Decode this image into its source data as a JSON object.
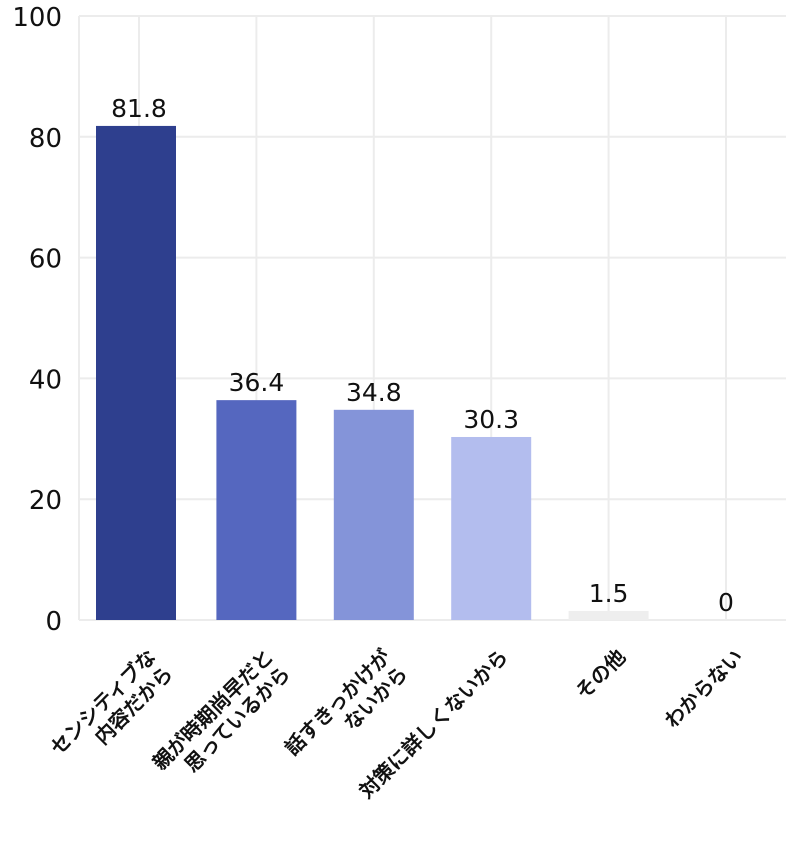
{
  "chart_data": {
    "type": "bar",
    "title": "",
    "xlabel": "",
    "ylabel": "",
    "ylim": [
      0,
      100
    ],
    "yticks": [
      0,
      20,
      40,
      60,
      80,
      100
    ],
    "grid": true,
    "categories": [
      [
        "センシティブな",
        "内容だから"
      ],
      [
        "親が時期尚早だと",
        "思っているから"
      ],
      [
        "話すきっかけが",
        "ないから"
      ],
      [
        "対策に詳しくないから"
      ],
      [
        "その他"
      ],
      [
        "わからない"
      ]
    ],
    "values": [
      81.8,
      36.4,
      34.8,
      30.3,
      1.5,
      0
    ],
    "data_labels": [
      "81.8",
      "36.4",
      "34.8",
      "30.3",
      "1.5",
      "0"
    ],
    "colors": [
      "#2e3f8e",
      "#5567bf",
      "#8494d9",
      "#b3bdee",
      "#eeeeee",
      "#eeeeee"
    ]
  }
}
